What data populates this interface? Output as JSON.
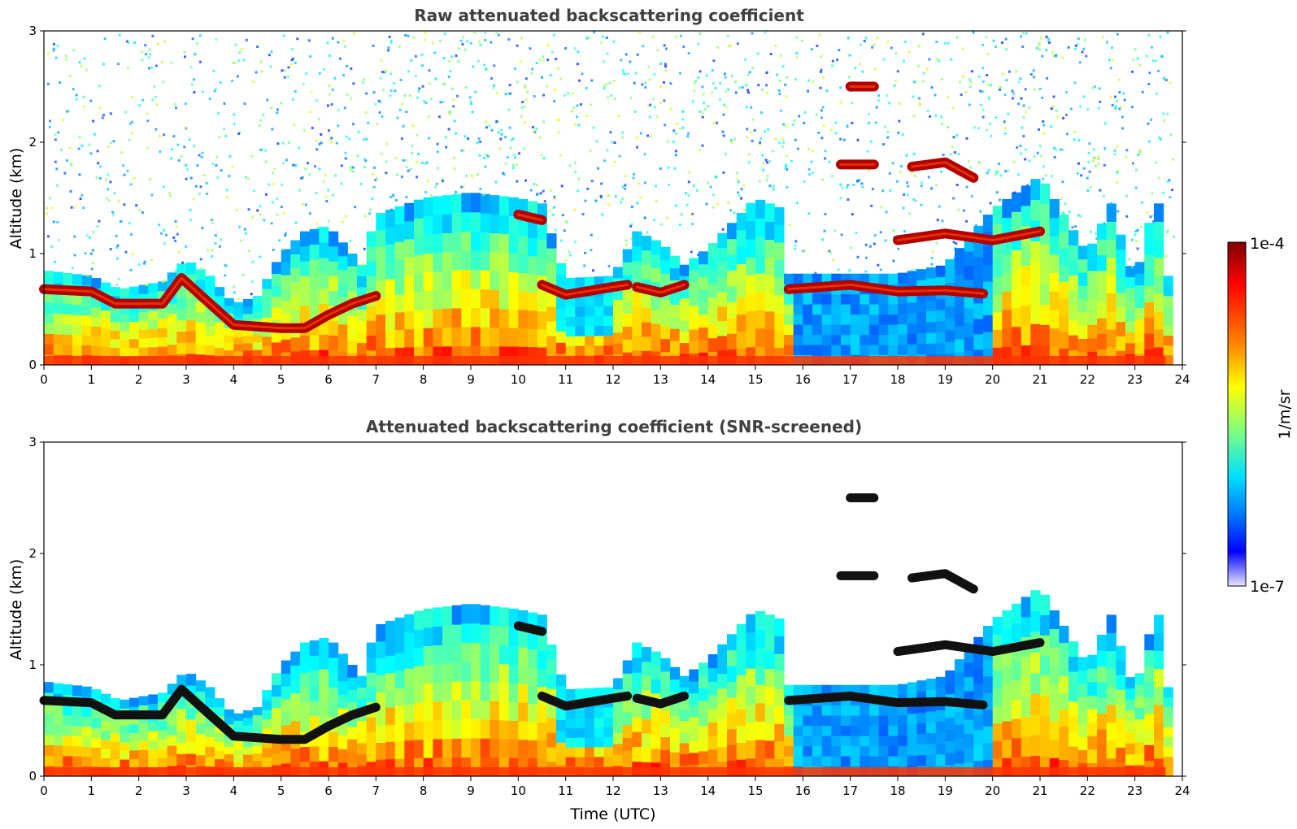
{
  "chart_data": [
    {
      "type": "heatmap",
      "title": "Raw attenuated backscattering coefficient",
      "xlabel": "",
      "ylabel": "Altitude (km)",
      "xlim": [
        0,
        24
      ],
      "ylim": [
        0,
        3
      ],
      "x_ticks": [
        "0",
        "1",
        "2",
        "3",
        "4",
        "5",
        "6",
        "7",
        "8",
        "9",
        "10",
        "11",
        "12",
        "13",
        "14",
        "15",
        "16",
        "17",
        "18",
        "19",
        "20",
        "21",
        "22",
        "23",
        "24"
      ],
      "y_ticks": [
        "0",
        "1",
        "2",
        "3"
      ],
      "grid": false,
      "screened": false,
      "layers": [
        {
          "name": "boundary-layer-top",
          "points": [
            [
              0,
              0.68
            ],
            [
              1,
              0.66
            ],
            [
              1.5,
              0.55
            ],
            [
              2.5,
              0.55
            ],
            [
              2.9,
              0.78
            ],
            [
              3.5,
              0.55
            ],
            [
              4,
              0.36
            ],
            [
              5,
              0.33
            ],
            [
              5.5,
              0.33
            ],
            [
              6,
              0.45
            ],
            [
              6.5,
              0.55
            ],
            [
              7,
              0.62
            ]
          ]
        },
        {
          "name": "cloud-10h",
          "points": [
            [
              10,
              1.35
            ],
            [
              10.5,
              1.3
            ]
          ]
        },
        {
          "name": "cloud-11h-12h",
          "points": [
            [
              10.5,
              0.72
            ],
            [
              11,
              0.63
            ],
            [
              12,
              0.7
            ],
            [
              12.3,
              0.72
            ]
          ]
        },
        {
          "name": "cloud-12.5h-13.5h",
          "points": [
            [
              12.5,
              0.7
            ],
            [
              13,
              0.65
            ],
            [
              13.5,
              0.72
            ]
          ]
        },
        {
          "name": "cloud-16h-20h",
          "points": [
            [
              15.7,
              0.68
            ],
            [
              17,
              0.72
            ],
            [
              18,
              0.66
            ],
            [
              19,
              0.67
            ],
            [
              19.8,
              0.64
            ]
          ]
        },
        {
          "name": "cloud-18h-21h",
          "points": [
            [
              18,
              1.12
            ],
            [
              19,
              1.18
            ],
            [
              20,
              1.12
            ],
            [
              21,
              1.2
            ]
          ]
        },
        {
          "name": "cloud-17.2h",
          "points": [
            [
              17,
              2.5
            ],
            [
              17.5,
              2.5
            ]
          ]
        },
        {
          "name": "cloud-17.5h",
          "points": [
            [
              16.8,
              1.8
            ],
            [
              17.5,
              1.8
            ]
          ]
        },
        {
          "name": "cloud-18.5h-19.5h",
          "points": [
            [
              18.3,
              1.78
            ],
            [
              19,
              1.82
            ],
            [
              19.6,
              1.68
            ]
          ]
        }
      ]
    },
    {
      "type": "heatmap",
      "title": "Attenuated backscattering coefficient (SNR-screened)",
      "xlabel": "Time (UTC)",
      "ylabel": "Altitude (km)",
      "xlim": [
        0,
        24
      ],
      "ylim": [
        0,
        3
      ],
      "x_ticks": [
        "0",
        "1",
        "2",
        "3",
        "4",
        "5",
        "6",
        "7",
        "8",
        "9",
        "10",
        "11",
        "12",
        "13",
        "14",
        "15",
        "16",
        "17",
        "18",
        "19",
        "20",
        "21",
        "22",
        "23",
        "24"
      ],
      "y_ticks": [
        "0",
        "1",
        "2",
        "3"
      ],
      "grid": false,
      "screened": true,
      "layers": [
        {
          "name": "boundary-layer-top",
          "points": [
            [
              0,
              0.68
            ],
            [
              1,
              0.66
            ],
            [
              1.5,
              0.55
            ],
            [
              2.5,
              0.55
            ],
            [
              2.9,
              0.78
            ],
            [
              3.5,
              0.55
            ],
            [
              4,
              0.36
            ],
            [
              5,
              0.33
            ],
            [
              5.5,
              0.33
            ],
            [
              6,
              0.45
            ],
            [
              6.5,
              0.55
            ],
            [
              7,
              0.62
            ]
          ]
        },
        {
          "name": "cloud-10h",
          "points": [
            [
              10,
              1.35
            ],
            [
              10.5,
              1.3
            ]
          ]
        },
        {
          "name": "cloud-11h-12h",
          "points": [
            [
              10.5,
              0.72
            ],
            [
              11,
              0.63
            ],
            [
              12,
              0.7
            ],
            [
              12.3,
              0.72
            ]
          ]
        },
        {
          "name": "cloud-12.5h-13.5h",
          "points": [
            [
              12.5,
              0.7
            ],
            [
              13,
              0.65
            ],
            [
              13.5,
              0.72
            ]
          ]
        },
        {
          "name": "cloud-16h-20h",
          "points": [
            [
              15.7,
              0.68
            ],
            [
              17,
              0.72
            ],
            [
              18,
              0.66
            ],
            [
              19,
              0.67
            ],
            [
              19.8,
              0.64
            ]
          ]
        },
        {
          "name": "cloud-18h-21h",
          "points": [
            [
              18,
              1.12
            ],
            [
              19,
              1.18
            ],
            [
              20,
              1.12
            ],
            [
              21,
              1.2
            ]
          ]
        },
        {
          "name": "cloud-17.2h",
          "points": [
            [
              17,
              2.5
            ],
            [
              17.5,
              2.5
            ]
          ]
        },
        {
          "name": "cloud-17.5h",
          "points": [
            [
              16.8,
              1.8
            ],
            [
              17.5,
              1.8
            ]
          ]
        },
        {
          "name": "cloud-18.5h-19.5h",
          "points": [
            [
              18.3,
              1.78
            ],
            [
              19,
              1.82
            ],
            [
              19.6,
              1.68
            ]
          ]
        }
      ]
    }
  ],
  "colorbar": {
    "label": "1/m/sr",
    "max_label": "1e-4",
    "min_label": "1e-7",
    "range": [
      1e-07,
      0.0001
    ],
    "scale": "log",
    "colormap": "jet",
    "colors": [
      "#7f0000",
      "#ff0000",
      "#ff7f00",
      "#ffff00",
      "#7fff7f",
      "#00ffff",
      "#007fff",
      "#0000ff",
      "#e0e0ff"
    ]
  }
}
